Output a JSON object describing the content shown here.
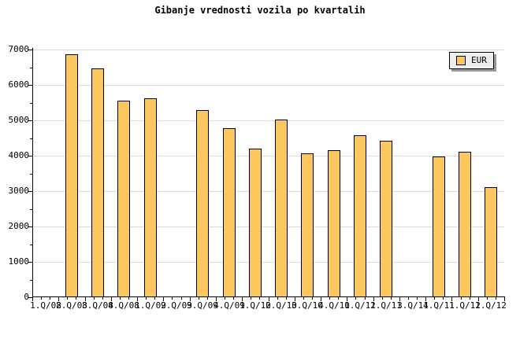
{
  "title": "Gibanje vrednosti vozila po kvartalih",
  "legend": {
    "label": "EUR"
  },
  "colors": {
    "background": "#FFFFFF",
    "bar_fill": "#FCC75E",
    "bar_border": "#000000",
    "grid": "#DCDCDC",
    "axis": "#000000",
    "text": "#000000",
    "legend_bg": "#EEEEEE",
    "legend_border": "#000000",
    "legend_shadow": "#999999"
  },
  "chart_data": {
    "type": "bar",
    "title": "Gibanje vrednosti vozila po kvartalih",
    "categories": [
      "1.Q/08",
      "2.Q/08",
      "3.Q/08",
      "4.Q/08",
      "1.Q/09",
      "2.Q/09",
      "3.Q/09",
      "4.Q/09",
      "1.Q/10",
      "2.Q/10",
      "3.Q/10",
      "4.Q/10",
      "1.Q/11",
      "2.Q/11",
      "3.Q/11",
      "4.Q/11",
      "1.Q/12",
      "1.Q/12"
    ],
    "series": [
      {
        "name": "EUR",
        "values": [
          null,
          6870,
          6470,
          5560,
          5630,
          null,
          5290,
          4780,
          4200,
          5030,
          4060,
          4160,
          4570,
          4420,
          null,
          3980,
          4120,
          3120
        ]
      }
    ],
    "xlabel": "",
    "ylabel": "",
    "ylim": [
      0,
      7000
    ],
    "ytick_step": 1000,
    "yminor_step": 500,
    "ytick_labels": [
      "0",
      "1000",
      "2000",
      "3000",
      "4000",
      "5000",
      "6000",
      "7000"
    ],
    "grid": true,
    "legend_position": "top-right"
  }
}
